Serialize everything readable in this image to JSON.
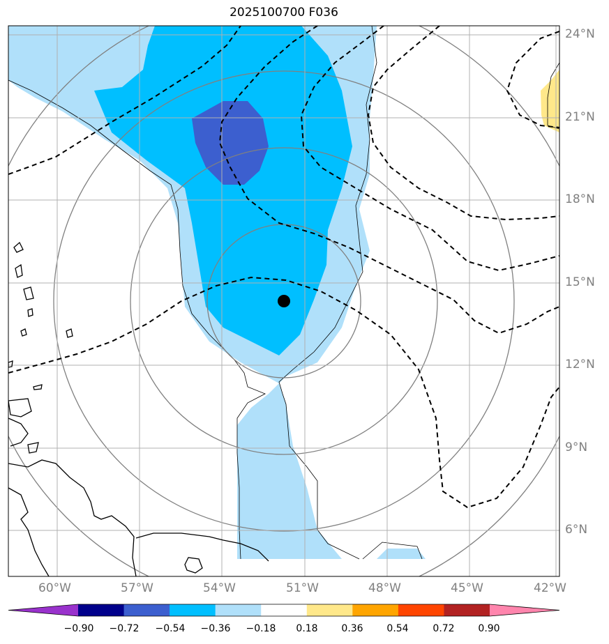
{
  "map": {
    "title": "2025100700 F036",
    "storm_center_marker": "filled-black-circle",
    "lat_labels": [
      "24°N",
      "21°N",
      "18°N",
      "15°N",
      "12°N",
      "9°N",
      "6°N"
    ],
    "lon_labels": [
      "60°W",
      "57°W",
      "54°W",
      "51°W",
      "48°W",
      "45°W",
      "42°W"
    ],
    "contour_lines": "dashed-black",
    "range_rings": "gray-concentric-circles"
  },
  "colorbar": {
    "levels": [
      "−0.90",
      "−0.72",
      "−0.54",
      "−0.36",
      "−0.18",
      "0.18",
      "0.36",
      "0.54",
      "0.72",
      "0.90"
    ],
    "colors": [
      "#9932cc",
      "#00008b",
      "#3c5fcf",
      "#00bfff",
      "#b0e0fa",
      "#ffffff",
      "#ffe88a",
      "#ffa500",
      "#ff4500",
      "#b22222",
      "#ff85ad"
    ],
    "extend": "both"
  }
}
